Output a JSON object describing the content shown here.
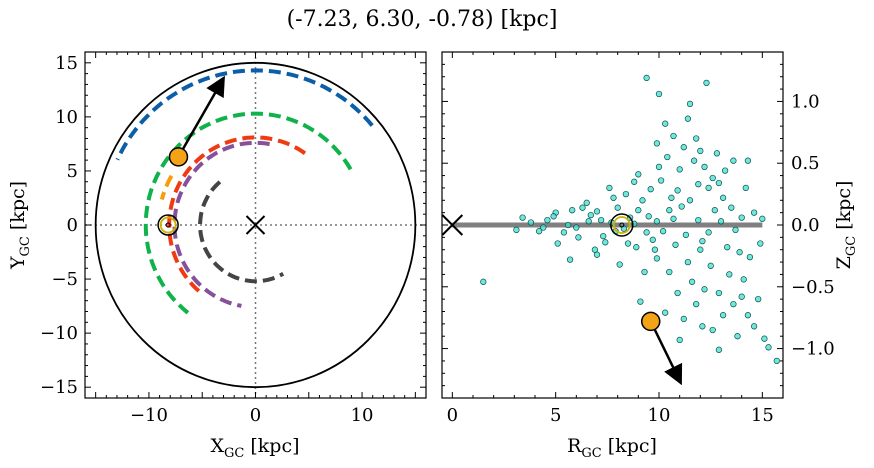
{
  "title": "(-7.23, 6.30, -0.78) [kpc]",
  "chart_data": [
    {
      "type": "scatter",
      "panel": "left",
      "xlabel_main": "X",
      "xlabel_sub": "GC",
      "xlabel_unit": " [kpc]",
      "ylabel_main": "Y",
      "ylabel_sub": "GC",
      "ylabel_unit": " [kpc]",
      "xlim": [
        -16,
        16
      ],
      "ylim": [
        -16,
        16
      ],
      "xticks": [
        -10,
        0,
        10
      ],
      "xtick_labels": [
        "−10",
        "0",
        "10"
      ],
      "yticks": [
        -15,
        -10,
        -5,
        0,
        5,
        10,
        15
      ],
      "ytick_labels": [
        "−15",
        "−10",
        "−5",
        "0",
        "5",
        "10",
        "15"
      ],
      "galaxy_circle_radius": 15,
      "galactic_center": [
        0,
        0
      ],
      "sun_position": [
        -8.2,
        0
      ],
      "object_position": [
        -7.23,
        6.3
      ],
      "velocity_arrow_end": [
        -3.1,
        13.4
      ],
      "orbit_arcs": [
        {
          "color": "#0b5ea8",
          "radius": 14.3,
          "start_deg": 40,
          "end_deg": 155
        },
        {
          "color": "#10b24a",
          "radius": 10.3,
          "start_deg": 30,
          "end_deg": 232
        },
        {
          "color": "#f59e0b",
          "radius": 9.1,
          "start_deg": 150,
          "end_deg": 165
        },
        {
          "color": "#ef3a12",
          "radius": 8.1,
          "start_deg": 55,
          "end_deg": 232
        },
        {
          "color": "#86509a",
          "radius": 7.6,
          "start_deg": 80,
          "end_deg": 260
        },
        {
          "color": "#444444",
          "radius": 5.2,
          "start_deg": 130,
          "end_deg": 300
        }
      ]
    },
    {
      "type": "scatter",
      "panel": "right",
      "xlabel_main": "R",
      "xlabel_sub": "GC",
      "xlabel_unit": " [kpc]",
      "ylabel_main": "Z",
      "ylabel_sub": "GC",
      "ylabel_unit": " [kpc]",
      "xlim": [
        -0.5,
        16
      ],
      "ylim": [
        -1.4,
        1.4
      ],
      "xticks": [
        0,
        5,
        10,
        15
      ],
      "xtick_labels": [
        "0",
        "5",
        "10",
        "15"
      ],
      "yticks": [
        -1.0,
        -0.5,
        0.0,
        0.5,
        1.0
      ],
      "ytick_labels": [
        "−1.0",
        "−0.5",
        "0.0",
        "0.5",
        "1.0"
      ],
      "disk_line": {
        "x": [
          0,
          15
        ],
        "y": 0
      },
      "galactic_center": [
        0,
        0
      ],
      "sun_position": [
        8.2,
        0
      ],
      "object_position": [
        9.6,
        -0.78
      ],
      "velocity_arrow_end": [
        11.0,
        -1.26
      ],
      "star_points": [
        [
          1.5,
          -0.46
        ],
        [
          3.1,
          -0.04
        ],
        [
          3.4,
          0.06
        ],
        [
          5.7,
          -0.28
        ],
        [
          9.1,
          -0.62
        ],
        [
          9.4,
          1.19
        ],
        [
          10.0,
          1.06
        ],
        [
          10.3,
          0.82
        ],
        [
          11.5,
          0.98
        ],
        [
          12.3,
          1.15
        ],
        [
          11.2,
          0.63
        ],
        [
          11.8,
          0.7
        ],
        [
          12.8,
          0.58
        ],
        [
          12.2,
          0.47
        ],
        [
          13.2,
          0.44
        ],
        [
          13.6,
          0.52
        ],
        [
          14.2,
          0.3
        ],
        [
          14.3,
          0.52
        ],
        [
          10.1,
          0.36
        ],
        [
          9.0,
          0.41
        ],
        [
          10.9,
          0.28
        ],
        [
          12.6,
          0.38
        ],
        [
          11.9,
          0.33
        ],
        [
          13.1,
          0.22
        ],
        [
          10.5,
          -0.38
        ],
        [
          12.2,
          -0.52
        ],
        [
          12.9,
          -0.55
        ],
        [
          13.6,
          -0.64
        ],
        [
          14.3,
          -0.73
        ],
        [
          14.6,
          -0.82
        ],
        [
          15.1,
          -0.92
        ],
        [
          15.3,
          -0.99
        ],
        [
          15.7,
          -1.1
        ],
        [
          13.8,
          -0.9
        ],
        [
          12.9,
          -1.01
        ],
        [
          12.1,
          -0.82
        ],
        [
          11.2,
          -0.76
        ],
        [
          10.3,
          -0.71
        ],
        [
          11.6,
          -0.46
        ],
        [
          13.4,
          -0.4
        ],
        [
          14.1,
          -0.44
        ],
        [
          14.8,
          -0.6
        ],
        [
          12.5,
          -0.33
        ],
        [
          11.4,
          -0.3
        ],
        [
          9.9,
          -0.27
        ],
        [
          7.0,
          -0.24
        ],
        [
          7.8,
          0.22
        ],
        [
          6.5,
          0.18
        ],
        [
          8.4,
          0.25
        ],
        [
          9.2,
          0.2
        ],
        [
          10.6,
          0.22
        ],
        [
          11.1,
          0.15
        ],
        [
          12.7,
          0.12
        ],
        [
          13.5,
          0.14
        ],
        [
          14.6,
          0.1
        ],
        [
          14.9,
          -0.15
        ],
        [
          13.9,
          -0.22
        ],
        [
          12.0,
          -0.2
        ],
        [
          10.8,
          -0.16
        ],
        [
          9.7,
          -0.12
        ],
        [
          8.9,
          -0.18
        ],
        [
          7.4,
          -0.14
        ],
        [
          6.1,
          -0.1
        ],
        [
          5.4,
          -0.06
        ],
        [
          4.6,
          0.04
        ],
        [
          4.2,
          -0.05
        ],
        [
          3.8,
          0.02
        ],
        [
          5.0,
          0.1
        ],
        [
          5.8,
          0.12
        ],
        [
          6.7,
          0.08
        ],
        [
          7.2,
          0.04
        ],
        [
          7.9,
          -0.05
        ],
        [
          8.6,
          0.06
        ],
        [
          9.5,
          0.07
        ],
        [
          10.2,
          -0.05
        ],
        [
          10.7,
          0.05
        ],
        [
          11.3,
          -0.08
        ],
        [
          11.9,
          0.04
        ],
        [
          12.4,
          -0.06
        ],
        [
          13.0,
          0.03
        ],
        [
          13.7,
          -0.04
        ],
        [
          14.0,
          0.06
        ],
        [
          9.3,
          -0.38
        ],
        [
          8.1,
          -0.32
        ],
        [
          7.6,
          0.3
        ],
        [
          10.0,
          0.47
        ],
        [
          10.4,
          0.55
        ],
        [
          11.0,
          0.45
        ],
        [
          11.7,
          0.52
        ],
        [
          12.4,
          0.3
        ],
        [
          8.8,
          0.35
        ],
        [
          9.6,
          0.29
        ],
        [
          6.9,
          -0.2
        ],
        [
          6.3,
          0.14
        ],
        [
          5.1,
          -0.15
        ],
        [
          4.9,
          0.07
        ],
        [
          6.0,
          -0.02
        ],
        [
          7.0,
          0.11
        ],
        [
          8.0,
          0.14
        ],
        [
          8.5,
          -0.15
        ],
        [
          9.0,
          0.12
        ],
        [
          9.8,
          -0.2
        ],
        [
          10.5,
          0.12
        ],
        [
          11.5,
          0.2
        ],
        [
          12.1,
          -0.13
        ],
        [
          13.3,
          -0.18
        ],
        [
          14.4,
          -0.26
        ],
        [
          15.0,
          0.05
        ],
        [
          10.9,
          -0.55
        ],
        [
          11.8,
          -0.64
        ],
        [
          13.1,
          -0.73
        ],
        [
          14.0,
          -0.58
        ],
        [
          12.6,
          -0.85
        ],
        [
          11.0,
          -0.93
        ],
        [
          9.9,
          0.66
        ],
        [
          10.7,
          0.72
        ],
        [
          11.4,
          0.86
        ],
        [
          12.0,
          0.6
        ],
        [
          12.9,
          0.34
        ],
        [
          7.3,
          -0.09
        ],
        [
          7.7,
          0.02
        ],
        [
          8.3,
          -0.03
        ],
        [
          8.8,
          0.01
        ],
        [
          9.4,
          -0.06
        ],
        [
          9.9,
          0.03
        ],
        [
          6.6,
          0.03
        ],
        [
          5.6,
          0.0
        ],
        [
          4.4,
          -0.02
        ]
      ]
    }
  ]
}
